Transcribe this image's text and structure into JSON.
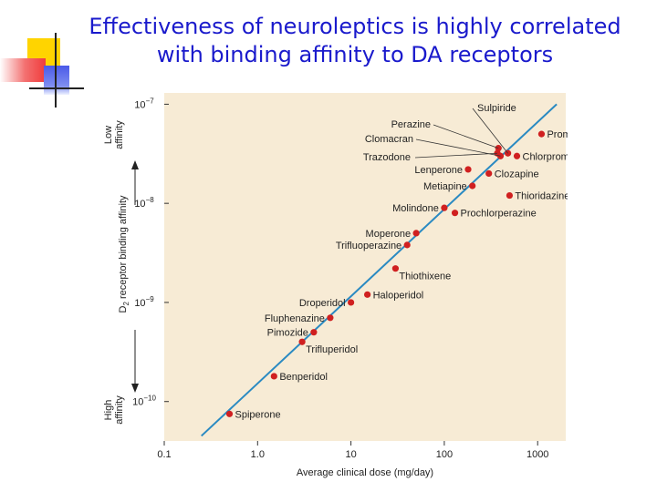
{
  "slide": {
    "title_line1": "Effectiveness of neuroleptics is highly correlated",
    "title_line2": "with binding affinity to DA receptors"
  },
  "colors": {
    "title": "#1a1acc",
    "panel": "#f7ebd5",
    "line": "#2a8ac2",
    "point": "#d02020",
    "deco_yellow": "#ffd400",
    "deco_red": "#f03c3c",
    "deco_blue": "#4a5ae8"
  },
  "chart_data": {
    "type": "scatter",
    "x_scale": "log",
    "y_scale": "log",
    "xlabel": "Average clinical dose (mg/day)",
    "ylabel": "D2 receptor binding affinity",
    "ylabel_low": [
      "Low",
      "affinity"
    ],
    "ylabel_high": [
      "High",
      "affinity"
    ],
    "xlim": [
      0.1,
      2000
    ],
    "ylim": [
      4e-11,
      1.3e-07
    ],
    "x_ticks": [
      {
        "v": 0.1,
        "label": "0.1"
      },
      {
        "v": 1,
        "label": "1.0"
      },
      {
        "v": 10,
        "label": "10"
      },
      {
        "v": 100,
        "label": "100"
      },
      {
        "v": 1000,
        "label": "1000"
      }
    ],
    "y_ticks": [
      {
        "v": 1e-10,
        "base": "10",
        "exp": "−10"
      },
      {
        "v": 1e-09,
        "base": "10",
        "exp": "−9"
      },
      {
        "v": 1e-08,
        "base": "10",
        "exp": "−8"
      },
      {
        "v": 1e-07,
        "base": "10",
        "exp": "−7"
      }
    ],
    "regression_line": [
      [
        0.25,
        4.5e-11
      ],
      [
        1600,
        1e-07
      ]
    ],
    "points": [
      {
        "label": "Spiperone",
        "x": 0.5,
        "y": 7.5e-11,
        "lp": "right"
      },
      {
        "label": "Benperidol",
        "x": 1.5,
        "y": 1.8e-10,
        "lp": "right"
      },
      {
        "label": "Trifluperidol",
        "x": 3,
        "y": 4e-10,
        "lp": "right-below"
      },
      {
        "label": "Pimozide",
        "x": 4,
        "y": 5e-10,
        "lp": "left"
      },
      {
        "label": "Fluphenazine",
        "x": 6,
        "y": 7e-10,
        "lp": "left"
      },
      {
        "label": "Droperidol",
        "x": 10,
        "y": 1e-09,
        "lp": "left"
      },
      {
        "label": "Haloperidol",
        "x": 15,
        "y": 1.2e-09,
        "lp": "right"
      },
      {
        "label": "Thiothixene",
        "x": 30,
        "y": 2.2e-09,
        "lp": "right-below"
      },
      {
        "label": "Trifluoperazine",
        "x": 40,
        "y": 3.8e-09,
        "lp": "left"
      },
      {
        "label": "Moperone",
        "x": 50,
        "y": 5e-09,
        "lp": "left"
      },
      {
        "label": "Molindone",
        "x": 100,
        "y": 9e-09,
        "lp": "left"
      },
      {
        "label": "Prochlorperazine",
        "x": 130,
        "y": 8e-09,
        "lp": "right"
      },
      {
        "label": "Metiapine",
        "x": 200,
        "y": 1.5e-08,
        "lp": "left"
      },
      {
        "label": "Lenperone",
        "x": 180,
        "y": 2.2e-08,
        "lp": "left"
      },
      {
        "label": "Clozapine",
        "x": 300,
        "y": 2e-08,
        "lp": "right"
      },
      {
        "label": "Thioridazine",
        "x": 500,
        "y": 1.2e-08,
        "lp": "right"
      },
      {
        "label": "Chlorpromazine",
        "x": 600,
        "y": 3e-08,
        "lp": "right"
      },
      {
        "label": "Promazine",
        "x": 1100,
        "y": 5e-08,
        "lp": "right"
      },
      {
        "label": "Trazodone",
        "x": 370,
        "y": 3.2e-08,
        "lp": "callout"
      },
      {
        "label": "Clomacran",
        "x": 400,
        "y": 3e-08,
        "lp": "callout"
      },
      {
        "label": "Perazine",
        "x": 380,
        "y": 3.6e-08,
        "lp": "callout"
      },
      {
        "label": "Sulpiride",
        "x": 480,
        "y": 3.2e-08,
        "lp": "callout"
      }
    ]
  }
}
